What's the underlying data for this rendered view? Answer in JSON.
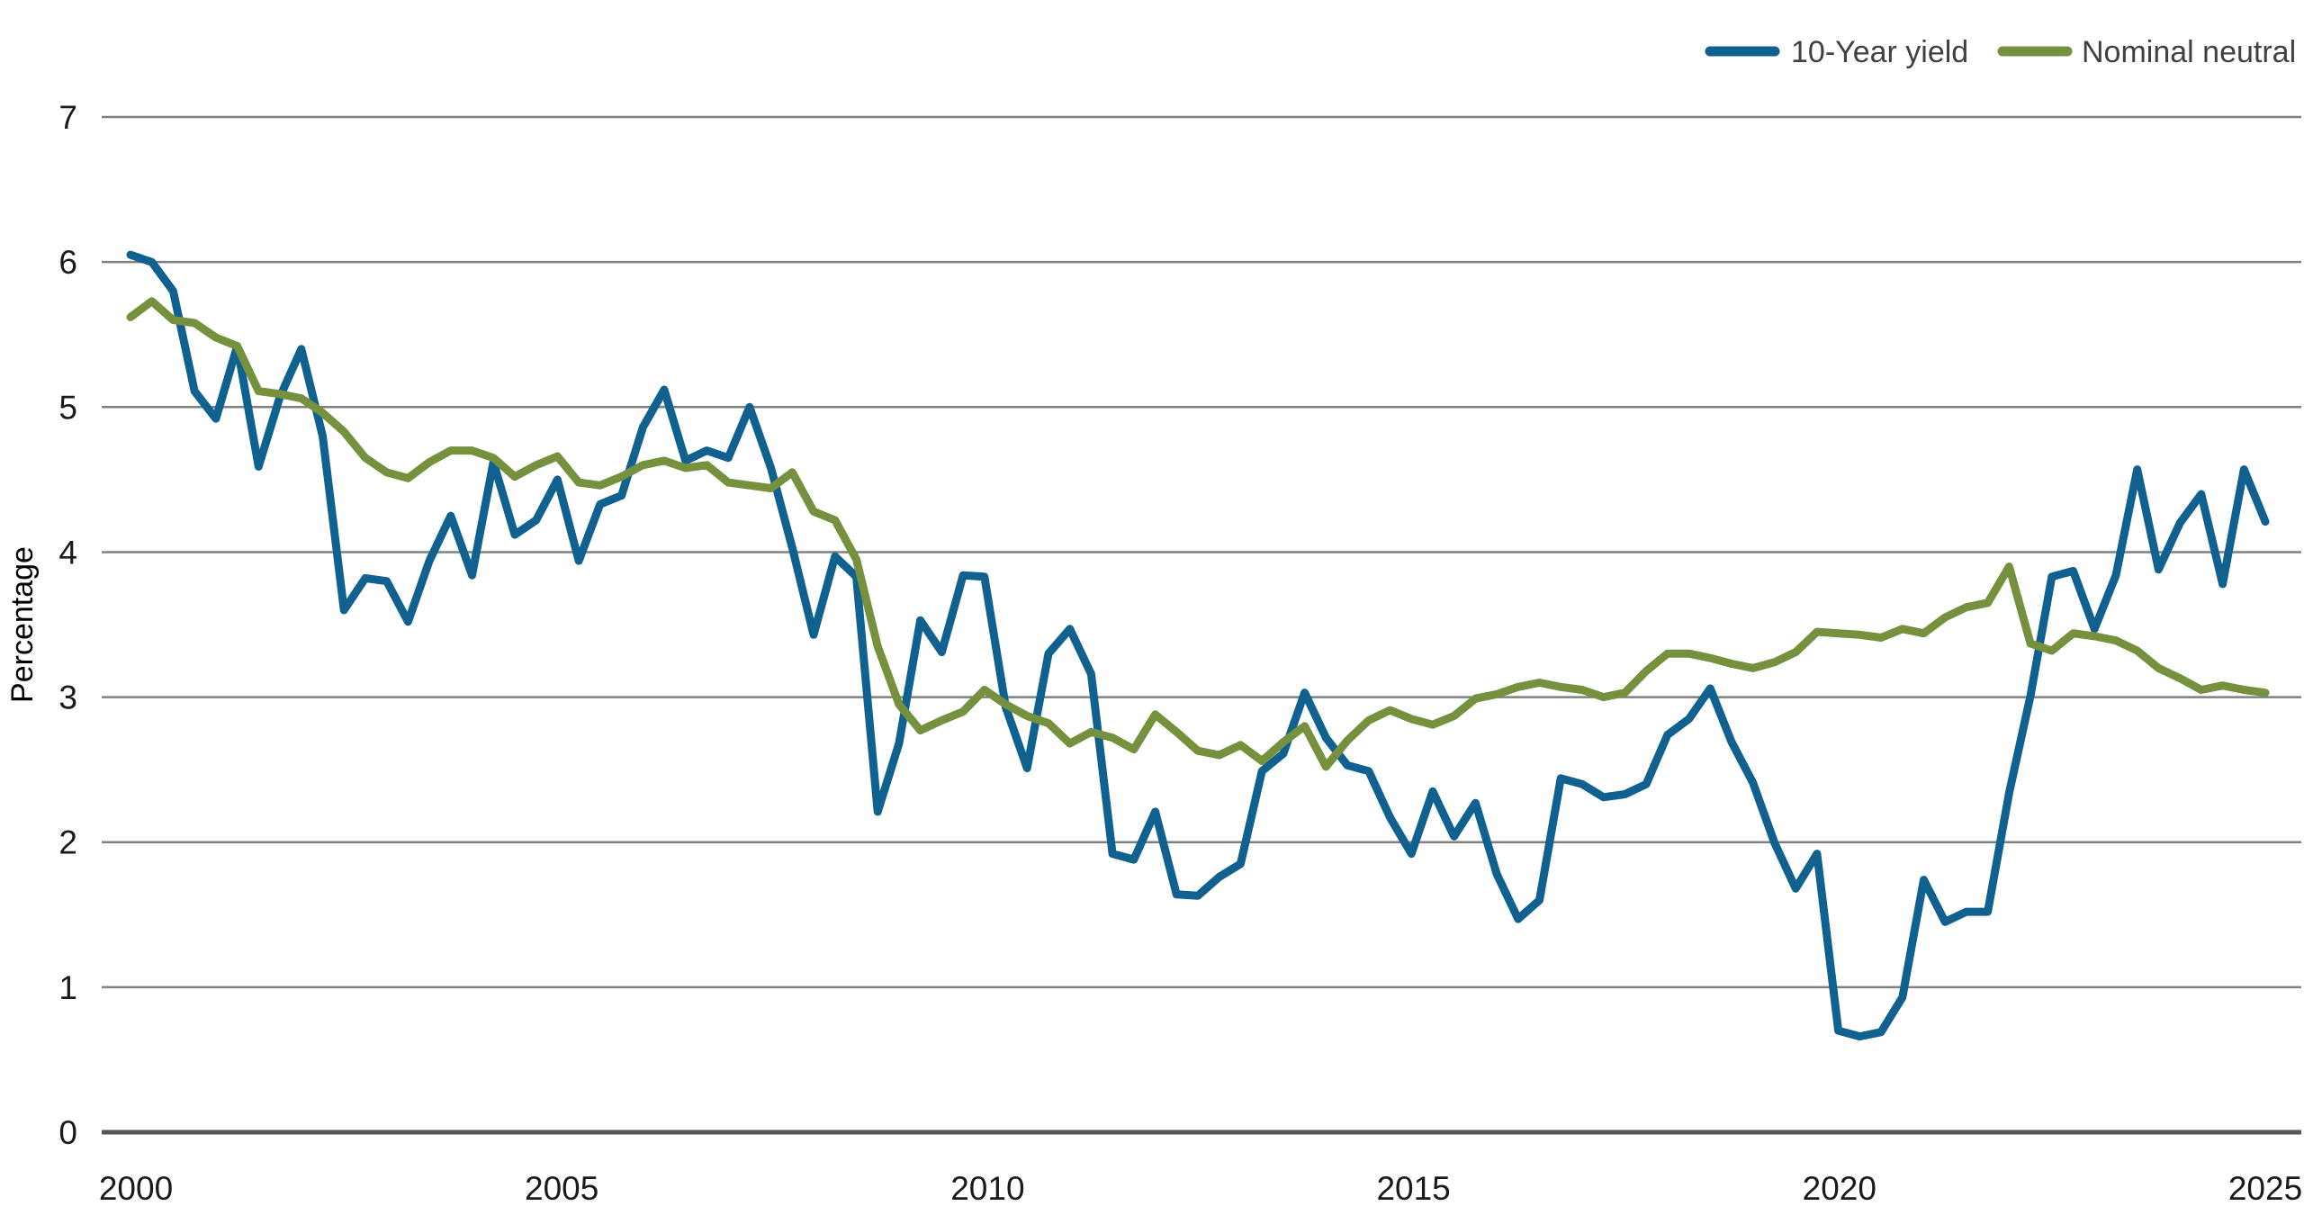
{
  "chart_data": {
    "type": "line",
    "title": "",
    "xlabel": "",
    "ylabel": "Percentage",
    "ylim": [
      0,
      7
    ],
    "y_ticks": [
      0,
      1,
      2,
      3,
      4,
      5,
      6,
      7
    ],
    "x_tick_labels": [
      "2000",
      "2005",
      "2010",
      "2015",
      "2020",
      "2025"
    ],
    "x_start_year": 2000,
    "points_per_year": 4,
    "grid": "horizontal",
    "legend_position": "top-right",
    "series": [
      {
        "name": "10-Year yield",
        "color": "#10618f",
        "values": [
          6.05,
          6.0,
          5.8,
          5.11,
          4.92,
          5.42,
          4.59,
          5.07,
          5.4,
          4.8,
          3.6,
          3.82,
          3.8,
          3.52,
          3.94,
          4.25,
          3.84,
          4.62,
          4.12,
          4.22,
          4.5,
          3.94,
          4.33,
          4.39,
          4.86,
          5.12,
          4.63,
          4.7,
          4.65,
          5.0,
          4.58,
          4.03,
          3.43,
          3.97,
          3.83,
          2.21,
          2.68,
          3.53,
          3.31,
          3.84,
          3.83,
          2.93,
          2.51,
          3.3,
          3.47,
          3.16,
          1.92,
          1.88,
          2.21,
          1.64,
          1.63,
          1.76,
          1.85,
          2.49,
          2.61,
          3.03,
          2.72,
          2.53,
          2.49,
          2.17,
          1.92,
          2.35,
          2.04,
          2.27,
          1.78,
          1.47,
          1.6,
          2.44,
          2.4,
          2.31,
          2.33,
          2.4,
          2.74,
          2.85,
          3.06,
          2.69,
          2.41,
          2.0,
          1.68,
          1.92,
          0.7,
          0.66,
          0.69,
          0.93,
          1.74,
          1.45,
          1.52,
          1.52,
          2.34,
          3.01,
          3.83,
          3.87,
          3.47,
          3.84,
          4.57,
          3.88,
          4.2,
          4.4,
          3.78,
          4.57,
          4.21
        ]
      },
      {
        "name": "Nominal neutral",
        "color": "#75913d",
        "values": [
          5.62,
          5.73,
          5.6,
          5.58,
          5.48,
          5.42,
          5.11,
          5.09,
          5.06,
          4.96,
          4.83,
          4.65,
          4.55,
          4.51,
          4.62,
          4.7,
          4.7,
          4.65,
          4.52,
          4.6,
          4.66,
          4.48,
          4.46,
          4.52,
          4.6,
          4.63,
          4.58,
          4.6,
          4.48,
          4.46,
          4.44,
          4.55,
          4.28,
          4.22,
          3.95,
          3.35,
          2.95,
          2.77,
          2.84,
          2.9,
          3.05,
          2.95,
          2.87,
          2.82,
          2.68,
          2.76,
          2.72,
          2.64,
          2.88,
          2.76,
          2.63,
          2.6,
          2.67,
          2.56,
          2.69,
          2.8,
          2.52,
          2.7,
          2.84,
          2.91,
          2.85,
          2.81,
          2.87,
          2.99,
          3.02,
          3.07,
          3.1,
          3.07,
          3.05,
          3.0,
          3.03,
          3.18,
          3.3,
          3.3,
          3.27,
          3.23,
          3.2,
          3.24,
          3.31,
          3.45,
          3.44,
          3.43,
          3.41,
          3.47,
          3.44,
          3.55,
          3.62,
          3.65,
          3.9,
          3.37,
          3.32,
          3.44,
          3.42,
          3.39,
          3.32,
          3.2,
          3.13,
          3.05,
          3.08,
          3.05,
          3.03
        ]
      }
    ]
  },
  "colors": {
    "background": "#ffffff",
    "gridline": "#808080",
    "baseline": "#53565a",
    "tick_text": "#1a1a1a",
    "legend_text": "#404040"
  }
}
